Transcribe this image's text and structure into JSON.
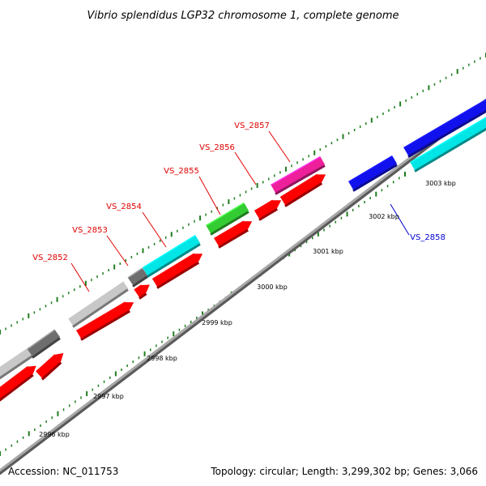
{
  "title": "Vibrio splendidus LGP32 chromosome 1, complete genome",
  "footer": {
    "accession": "Accession: NC_011753",
    "summary": "Topology: circular; Length: 3,299,302 bp; Genes: 3,066"
  },
  "colors": {
    "backbone": "#8c8c8c",
    "tick": "#1e7d1e",
    "forward_label": "#e00000",
    "reverse_label": "#0000cc",
    "red_gene": "#ff0000",
    "gray_gene": "#c8c8c8",
    "dark_gray_gene": "#6e6e6e",
    "cyan_gene": "#00e5e5",
    "green_gene": "#33cc33",
    "magenta_gene": "#ee1f9a",
    "blue_gene": "#1111ee"
  },
  "kbp_labels": [
    "2996 kbp",
    "2997 kbp",
    "2998 kbp",
    "2999 kbp",
    "3000 kbp",
    "3001 kbp",
    "3002 kbp",
    "3003 kbp"
  ],
  "gene_labels": [
    {
      "name": "VS_2852",
      "strand": "forward"
    },
    {
      "name": "VS_2853",
      "strand": "forward"
    },
    {
      "name": "VS_2854",
      "strand": "forward"
    },
    {
      "name": "VS_2855",
      "strand": "forward"
    },
    {
      "name": "VS_2856",
      "strand": "forward"
    },
    {
      "name": "VS_2857",
      "strand": "forward"
    },
    {
      "name": "VS_2858",
      "strand": "reverse"
    }
  ]
}
